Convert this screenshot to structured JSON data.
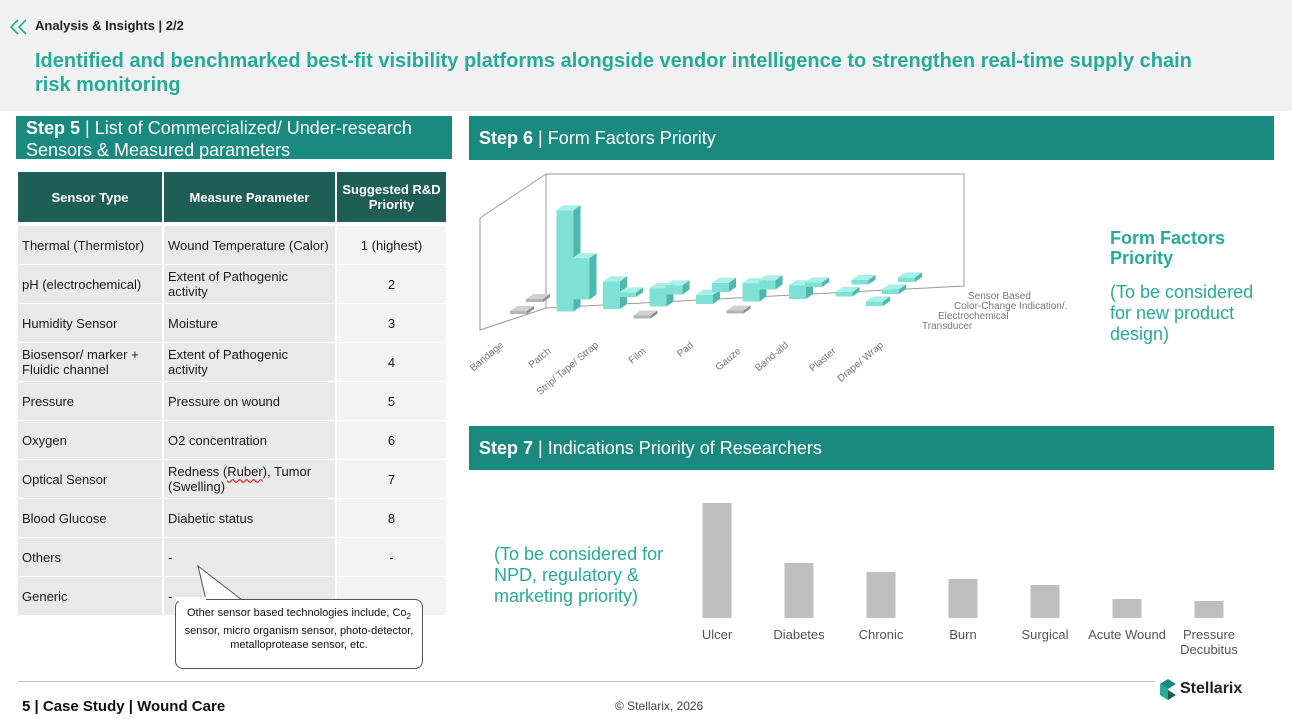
{
  "header": {
    "section_title": "Analysis & Insights | 2/2",
    "headline": "Identified and benchmarked best-fit visibility platforms alongside vendor intelligence to strengthen real-time supply chain risk monitoring",
    "accent_color": "#26ab9a"
  },
  "step5": {
    "step": "Step 5",
    "sep": " | ",
    "title": "List of Commercialized/ Under-research Sensors & Measured parameters",
    "columns": [
      "Sensor Type",
      "Measure Parameter",
      "Suggested R&D Priority"
    ],
    "rows": [
      {
        "sensor": "Thermal (Thermistor)",
        "param": "Wound Temperature (Calor)",
        "priority": "1 (highest)"
      },
      {
        "sensor": "pH (electrochemical)",
        "param": "Extent of Pathogenic activity",
        "priority": "2"
      },
      {
        "sensor": "Humidity Sensor",
        "param": "Moisture",
        "priority": "3"
      },
      {
        "sensor": "Biosensor/ marker + Fluidic channel",
        "param": "Extent of Pathogenic activity",
        "priority": "4"
      },
      {
        "sensor": "Pressure",
        "param": "Pressure on wound",
        "priority": "5"
      },
      {
        "sensor": "Oxygen",
        "param": "O2 concentration",
        "priority": "6"
      },
      {
        "sensor": "Optical Sensor",
        "param_a": "Redness (",
        "param_b": "Ruber",
        "param_c": "), Tumor (Swelling)",
        "priority": "7"
      },
      {
        "sensor": "Blood Glucose",
        "param": "Diabetic status",
        "priority": "8"
      },
      {
        "sensor": "Others",
        "param": "-",
        "priority": "-"
      },
      {
        "sensor": "Generic",
        "param": "-",
        "priority": ""
      }
    ],
    "callout_a": "Other sensor based technologies include, Co",
    "callout_sub": "2",
    "callout_b": " sensor, micro organism sensor, photo-detector, metalloprotease sensor, etc."
  },
  "step6": {
    "step": "Step 6",
    "sep": " | ",
    "title": "Form Factors Priority",
    "side_title": "Form Factors Priority",
    "side_note": "(To be considered for new product design)"
  },
  "step7": {
    "step": "Step 7",
    "sep": " | ",
    "title": "Indications Priority of Researchers",
    "side_note": "(To be considered for NPD, regulatory & marketing priority)"
  },
  "chart_data": [
    {
      "type": "bar",
      "categories": [
        "Bandage",
        "Patch",
        "Strip/ Tape/ Strap",
        "Film",
        "Pad",
        "Gauze",
        "Band-aid",
        "Plaster",
        "Drape/ Wrap"
      ],
      "series": [
        {
          "name": "Sensor Based",
          "values": [
            0,
            0,
            0,
            0,
            0,
            0,
            0,
            0,
            0
          ]
        },
        {
          "name": "Color-Change Indication/.",
          "values": [
            0,
            0,
            0,
            0,
            0,
            0,
            0,
            0,
            0
          ]
        },
        {
          "name": "Electrochemical Transducer",
          "values": [
            0,
            0,
            0,
            0,
            0,
            0,
            0,
            0,
            0
          ]
        }
      ],
      "bars": [
        {
          "category": "Bandage",
          "series": "Electrochemical Transducer",
          "value": 0.5
        },
        {
          "category": "Bandage",
          "series": "Color-Change Indication/.",
          "value": 0.5
        },
        {
          "category": "Patch",
          "series": "Electrochemical Transducer",
          "value": 9
        },
        {
          "category": "Patch",
          "series": "Color-Change Indication/.",
          "value": 22
        },
        {
          "category": "Strip/ Tape/ Strap",
          "series": "Electrochemical Transducer",
          "value": 1
        },
        {
          "category": "Strip/ Tape/ Strap",
          "series": "Color-Change Indication/.",
          "value": 6
        },
        {
          "category": "Film",
          "series": "Electrochemical Transducer",
          "value": 2
        },
        {
          "category": "Film",
          "series": "Color-Change Indication/.",
          "value": 4
        },
        {
          "category": "Film",
          "series": "Sensor Based",
          "value": 0.5
        },
        {
          "category": "Pad",
          "series": "Electrochemical Transducer",
          "value": 2
        },
        {
          "category": "Pad",
          "series": "Color-Change Indication/.",
          "value": 2
        },
        {
          "category": "Gauze",
          "series": "Electrochemical Transducer",
          "value": 2
        },
        {
          "category": "Gauze",
          "series": "Color-Change Indication/.",
          "value": 4
        },
        {
          "category": "Gauze",
          "series": "Sensor Based",
          "value": 0.5
        },
        {
          "category": "Band-aid",
          "series": "Electrochemical Transducer",
          "value": 1
        },
        {
          "category": "Band-aid",
          "series": "Color-Change Indication/.",
          "value": 3
        },
        {
          "category": "Plaster",
          "series": "Electrochemical Transducer",
          "value": 1
        },
        {
          "category": "Plaster",
          "series": "Color-Change Indication/.",
          "value": 1
        },
        {
          "category": "Drape/ Wrap",
          "series": "Electrochemical Transducer",
          "value": 1
        },
        {
          "category": "Drape/ Wrap",
          "series": "Color-Change Indication/.",
          "value": 1
        },
        {
          "category": "Drape/ Wrap",
          "series": "Sensor Based",
          "value": 1
        }
      ],
      "title": "",
      "xlabel": "",
      "ylabel": "",
      "grid": false,
      "colors": {
        "main": "#7fe0d6",
        "side": "#4fb8ad",
        "top": "#a9f0e8",
        "gray": "#a8a8a8"
      }
    },
    {
      "type": "bar",
      "categories": [
        "Ulcer",
        "Diabetes",
        "Chronic",
        "Burn",
        "Surgical",
        "Acute Wound",
        "Pressure Decubitus"
      ],
      "values": [
        115,
        55,
        46,
        39,
        33,
        19,
        17
      ],
      "title": "",
      "xlabel": "",
      "ylabel": "",
      "ylim": [
        0,
        125
      ],
      "grid": false,
      "colors": {
        "bar": "#bfbfbf"
      }
    }
  ],
  "footer": {
    "left": "5 | Case Study | Wound Care",
    "center": "© Stellarix, 2026",
    "logo": "Stellarix"
  }
}
